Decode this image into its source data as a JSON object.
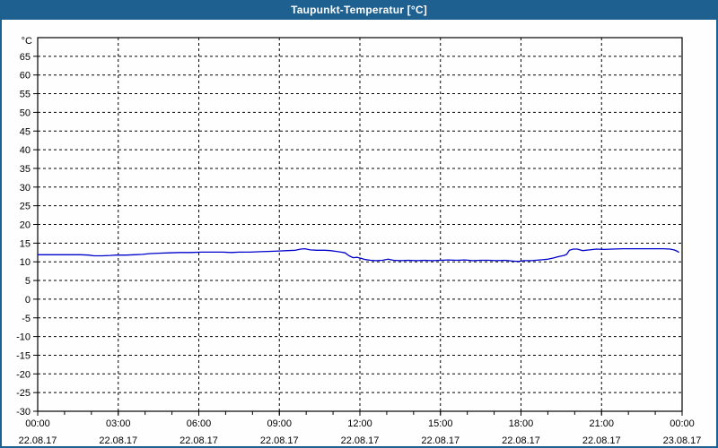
{
  "window": {
    "title": "Taupunkt-Temperatur [°C]"
  },
  "colors": {
    "titlebar": "#1e608f",
    "window_border": "#1e608f",
    "content_background": "#fdfefd",
    "plot_background": "#fdfefd",
    "axis": "#000000",
    "grid": "#000000",
    "series_line": "#0000cc",
    "title_text": "#ffffff"
  },
  "chart_data": {
    "type": "line",
    "title": "Taupunkt-Temperatur [°C]",
    "ylabel_unit": "°C",
    "xlabel": "",
    "xlim_hours": [
      0,
      24
    ],
    "ylim": [
      -30,
      70
    ],
    "grid": true,
    "grid_style": "dashed",
    "y_ticks": [
      65,
      60,
      55,
      50,
      45,
      40,
      35,
      30,
      25,
      20,
      15,
      10,
      5,
      0,
      -5,
      -10,
      -15,
      -20,
      -25,
      -30
    ],
    "x_major_ticks": [
      {
        "hour": 0,
        "time": "00:00",
        "date": "22.08.17"
      },
      {
        "hour": 3,
        "time": "03:00",
        "date": "22.08.17"
      },
      {
        "hour": 6,
        "time": "06:00",
        "date": "22.08.17"
      },
      {
        "hour": 9,
        "time": "09:00",
        "date": "22.08.17"
      },
      {
        "hour": 12,
        "time": "12:00",
        "date": "22.08.17"
      },
      {
        "hour": 15,
        "time": "15:00",
        "date": "22.08.17"
      },
      {
        "hour": 18,
        "time": "18:00",
        "date": "22.08.17"
      },
      {
        "hour": 21,
        "time": "21:00",
        "date": "22.08.17"
      },
      {
        "hour": 24,
        "time": "00:00",
        "date": "23.08.17"
      }
    ],
    "x_minor_tick_every_hours": 1,
    "x_gridline_hours": [
      3,
      6,
      9,
      12,
      15,
      18,
      21
    ],
    "series": [
      {
        "name": "Taupunkt-Temperatur",
        "color": "#0000cc",
        "points": [
          [
            0.0,
            11.9
          ],
          [
            0.4,
            11.9
          ],
          [
            0.8,
            11.9
          ],
          [
            1.2,
            11.9
          ],
          [
            1.6,
            11.9
          ],
          [
            1.9,
            11.8
          ],
          [
            2.1,
            11.6
          ],
          [
            2.4,
            11.6
          ],
          [
            2.7,
            11.7
          ],
          [
            2.9,
            11.8
          ],
          [
            3.3,
            11.8
          ],
          [
            3.6,
            11.9
          ],
          [
            3.9,
            12.0
          ],
          [
            4.2,
            12.2
          ],
          [
            4.5,
            12.3
          ],
          [
            4.9,
            12.4
          ],
          [
            5.3,
            12.5
          ],
          [
            5.7,
            12.5
          ],
          [
            6.1,
            12.6
          ],
          [
            6.5,
            12.6
          ],
          [
            6.9,
            12.6
          ],
          [
            7.2,
            12.5
          ],
          [
            7.5,
            12.6
          ],
          [
            7.9,
            12.6
          ],
          [
            8.3,
            12.7
          ],
          [
            8.7,
            12.8
          ],
          [
            9.0,
            12.9
          ],
          [
            9.3,
            13.0
          ],
          [
            9.6,
            13.1
          ],
          [
            9.8,
            13.4
          ],
          [
            9.95,
            13.5
          ],
          [
            10.15,
            13.2
          ],
          [
            10.4,
            13.1
          ],
          [
            10.7,
            13.1
          ],
          [
            10.9,
            13.0
          ],
          [
            11.1,
            12.8
          ],
          [
            11.3,
            12.6
          ],
          [
            11.45,
            12.4
          ],
          [
            11.6,
            11.6
          ],
          [
            11.75,
            11.1
          ],
          [
            11.9,
            11.2
          ],
          [
            12.05,
            10.9
          ],
          [
            12.2,
            10.6
          ],
          [
            12.4,
            10.4
          ],
          [
            12.6,
            10.3
          ],
          [
            12.85,
            10.4
          ],
          [
            13.05,
            10.7
          ],
          [
            13.25,
            10.4
          ],
          [
            13.5,
            10.3
          ],
          [
            13.8,
            10.4
          ],
          [
            14.1,
            10.3
          ],
          [
            14.4,
            10.4
          ],
          [
            14.7,
            10.3
          ],
          [
            15.0,
            10.4
          ],
          [
            15.3,
            10.5
          ],
          [
            15.6,
            10.4
          ],
          [
            15.9,
            10.5
          ],
          [
            16.2,
            10.3
          ],
          [
            16.5,
            10.4
          ],
          [
            16.8,
            10.4
          ],
          [
            17.1,
            10.3
          ],
          [
            17.4,
            10.4
          ],
          [
            17.7,
            10.2
          ],
          [
            17.9,
            10.1
          ],
          [
            18.1,
            10.3
          ],
          [
            18.4,
            10.3
          ],
          [
            18.7,
            10.5
          ],
          [
            19.0,
            10.7
          ],
          [
            19.2,
            11.0
          ],
          [
            19.4,
            11.4
          ],
          [
            19.6,
            11.7
          ],
          [
            19.7,
            12.0
          ],
          [
            19.8,
            13.1
          ],
          [
            19.95,
            13.4
          ],
          [
            20.1,
            13.4
          ],
          [
            20.3,
            13.0
          ],
          [
            20.55,
            13.2
          ],
          [
            20.8,
            13.4
          ],
          [
            21.1,
            13.3
          ],
          [
            21.4,
            13.4
          ],
          [
            21.8,
            13.5
          ],
          [
            22.2,
            13.5
          ],
          [
            22.6,
            13.5
          ],
          [
            23.0,
            13.5
          ],
          [
            23.3,
            13.5
          ],
          [
            23.55,
            13.4
          ],
          [
            23.7,
            13.2
          ],
          [
            23.8,
            12.9
          ],
          [
            23.87,
            12.6
          ]
        ]
      }
    ]
  }
}
